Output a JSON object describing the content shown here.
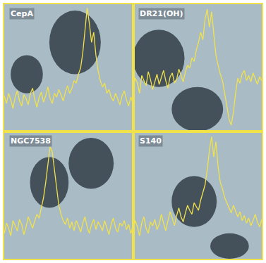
{
  "chart_data": [
    {
      "type": "line",
      "title": "CepA",
      "color": "#f2e24a",
      "xlim": [
        0,
        59
      ],
      "ylim": [
        0,
        100
      ],
      "tick_labels": false,
      "x": [
        0,
        1,
        2,
        3,
        4,
        5,
        6,
        7,
        8,
        9,
        10,
        11,
        12,
        13,
        14,
        15,
        16,
        17,
        18,
        19,
        20,
        21,
        22,
        23,
        24,
        25,
        26,
        27,
        28,
        29,
        30,
        31,
        32,
        33,
        34,
        35,
        36,
        37,
        38,
        39,
        40,
        41,
        42,
        43,
        44,
        45,
        46,
        47,
        48,
        49,
        50,
        51,
        52,
        53,
        54,
        55,
        56,
        57,
        58,
        59
      ],
      "values": [
        28,
        22,
        30,
        25,
        18,
        27,
        32,
        24,
        20,
        29,
        26,
        21,
        30,
        34,
        25,
        19,
        27,
        31,
        23,
        28,
        35,
        26,
        22,
        30,
        27,
        33,
        29,
        24,
        31,
        36,
        30,
        34,
        40,
        38,
        45,
        50,
        62,
        80,
        97,
        85,
        70,
        78,
        60,
        48,
        40,
        35,
        38,
        30,
        33,
        27,
        24,
        30,
        26,
        21,
        28,
        32,
        25,
        20,
        27,
        23
      ]
    },
    {
      "type": "line",
      "title": "DR21(OH)",
      "color": "#f2e24a",
      "xlim": [
        0,
        59
      ],
      "ylim": [
        0,
        100
      ],
      "tick_labels": false,
      "x": [
        0,
        1,
        2,
        3,
        4,
        5,
        6,
        7,
        8,
        9,
        10,
        11,
        12,
        13,
        14,
        15,
        16,
        17,
        18,
        19,
        20,
        21,
        22,
        23,
        24,
        25,
        26,
        27,
        28,
        29,
        30,
        31,
        32,
        33,
        34,
        35,
        36,
        37,
        38,
        39,
        40,
        41,
        42,
        43,
        44,
        45,
        46,
        47,
        48,
        49,
        50,
        51,
        52,
        53,
        54,
        55,
        56,
        57,
        58,
        59
      ],
      "values": [
        35,
        42,
        38,
        30,
        44,
        40,
        36,
        47,
        41,
        33,
        39,
        45,
        37,
        42,
        48,
        40,
        34,
        43,
        46,
        38,
        41,
        49,
        44,
        39,
        47,
        52,
        50,
        58,
        55,
        64,
        70,
        78,
        72,
        88,
        96,
        82,
        94,
        78,
        60,
        52,
        45,
        40,
        30,
        20,
        10,
        5,
        15,
        30,
        42,
        38,
        45,
        48,
        40,
        44,
        39,
        46,
        42,
        37,
        43,
        40
      ]
    },
    {
      "type": "line",
      "title": "NGC7538",
      "color": "#f2e24a",
      "xlim": [
        0,
        59
      ],
      "ylim": [
        0,
        100
      ],
      "tick_labels": false,
      "x": [
        0,
        1,
        2,
        3,
        4,
        5,
        6,
        7,
        8,
        9,
        10,
        11,
        12,
        13,
        14,
        15,
        16,
        17,
        18,
        19,
        20,
        21,
        22,
        23,
        24,
        25,
        26,
        27,
        28,
        29,
        30,
        31,
        32,
        33,
        34,
        35,
        36,
        37,
        38,
        39,
        40,
        41,
        42,
        43,
        44,
        45,
        46,
        47,
        48,
        49,
        50,
        51,
        52,
        53,
        54,
        55,
        56,
        57,
        58,
        59
      ],
      "values": [
        20,
        28,
        24,
        18,
        30,
        26,
        22,
        31,
        27,
        19,
        25,
        33,
        28,
        24,
        30,
        35,
        32,
        40,
        48,
        60,
        75,
        88,
        84,
        70,
        55,
        42,
        35,
        30,
        27,
        32,
        24,
        29,
        22,
        30,
        26,
        21,
        28,
        33,
        25,
        20,
        27,
        31,
        23,
        29,
        26,
        22,
        30,
        25,
        19,
        27,
        32,
        24,
        21,
        28,
        26,
        30,
        23,
        27,
        20,
        25
      ]
    },
    {
      "type": "line",
      "title": "S140",
      "color": "#f2e24a",
      "xlim": [
        0,
        59
      ],
      "ylim": [
        0,
        100
      ],
      "tick_labels": false,
      "x": [
        0,
        1,
        2,
        3,
        4,
        5,
        6,
        7,
        8,
        9,
        10,
        11,
        12,
        13,
        14,
        15,
        16,
        17,
        18,
        19,
        20,
        21,
        22,
        23,
        24,
        25,
        26,
        27,
        28,
        29,
        30,
        31,
        32,
        33,
        34,
        35,
        36,
        37,
        38,
        39,
        40,
        41,
        42,
        43,
        44,
        45,
        46,
        47,
        48,
        49,
        50,
        51,
        52,
        53,
        54,
        55,
        56,
        57,
        58,
        59
      ],
      "values": [
        22,
        30,
        25,
        18,
        28,
        33,
        24,
        20,
        29,
        26,
        31,
        23,
        27,
        35,
        28,
        22,
        30,
        37,
        32,
        26,
        34,
        40,
        33,
        29,
        36,
        42,
        38,
        35,
        44,
        41,
        38,
        46,
        52,
        58,
        70,
        85,
        96,
        80,
        92,
        72,
        60,
        55,
        48,
        44,
        40,
        36,
        42,
        38,
        33,
        37,
        30,
        34,
        28,
        32,
        26,
        30,
        35,
        29,
        25,
        31
      ]
    }
  ]
}
